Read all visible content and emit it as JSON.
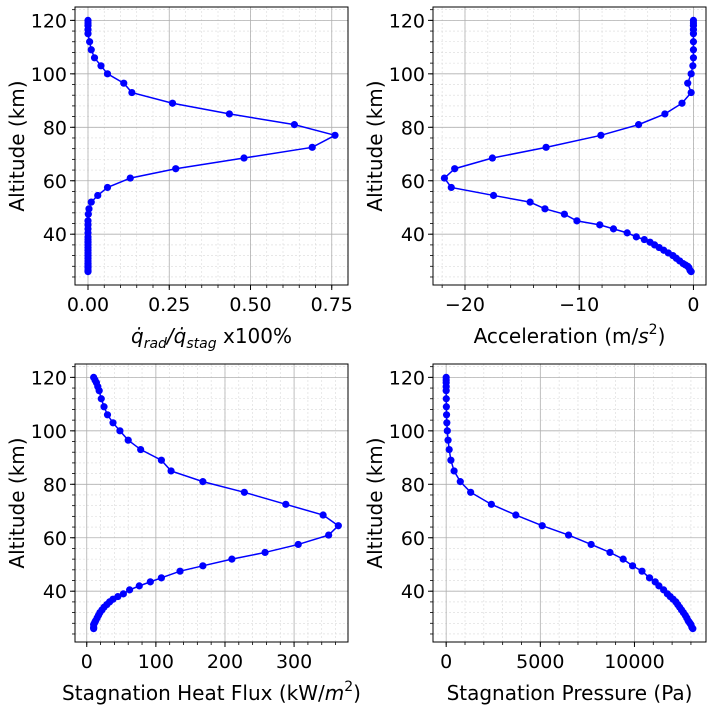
{
  "colors": {
    "series": "#0000ff",
    "grid_major": "#b0b0b0",
    "grid_minor": "#d9d9d9",
    "axes": "#000000"
  },
  "chart_data": [
    {
      "id": "rad",
      "type": "line",
      "marker": "circle",
      "ylabel": "Altitude (km)",
      "xlabel_parts": [
        {
          "t": "q̇",
          "style": "italic"
        },
        {
          "t": "rad",
          "style": "sub-italic"
        },
        {
          "t": "/",
          "style": "italic"
        },
        {
          "t": "q̇",
          "style": "italic"
        },
        {
          "t": "stag",
          "style": "sub-italic"
        },
        {
          "t": " x100%",
          "style": "normal"
        }
      ],
      "xlim": [
        -0.04,
        0.8
      ],
      "ylim": [
        21,
        125
      ],
      "xticks": [
        0,
        0.25,
        0.5,
        0.75
      ],
      "xtick_labels": [
        "0.00",
        "0.25",
        "0.50",
        "0.75"
      ],
      "yticks": [
        40,
        60,
        80,
        100,
        120
      ],
      "ytick_labels": [
        "40",
        "60",
        "80",
        "100",
        "120"
      ],
      "grid": true,
      "x": [
        0,
        0,
        0,
        0,
        0,
        0.005,
        0.01,
        0.02,
        0.04,
        0.06,
        0.11,
        0.135,
        0.26,
        0.435,
        0.635,
        0.76,
        0.69,
        0.48,
        0.27,
        0.13,
        0.06,
        0.03,
        0.01,
        0.003,
        0.001,
        0,
        0,
        0,
        0,
        0,
        0,
        0,
        0,
        0,
        0,
        0,
        0,
        0,
        0,
        0,
        0,
        0,
        0,
        0,
        0
      ],
      "y": [
        120,
        119,
        118,
        116.5,
        115,
        112,
        109,
        106,
        103,
        100,
        96.5,
        93,
        89,
        85,
        81,
        77,
        72.5,
        68.5,
        64.5,
        61,
        57.5,
        54.5,
        52,
        49.5,
        47.5,
        45,
        43.5,
        42,
        40.5,
        39,
        38,
        37,
        36,
        35,
        34,
        33,
        32,
        31,
        30,
        29,
        28.5,
        28,
        27.5,
        26.5,
        26
      ]
    },
    {
      "id": "acc",
      "type": "line",
      "marker": "circle",
      "ylabel": "Altitude (km)",
      "xlabel_parts": [
        {
          "t": "Acceleration (m/",
          "style": "normal"
        },
        {
          "t": "s",
          "style": "italic"
        },
        {
          "t": "2",
          "style": "sup"
        },
        {
          "t": ")",
          "style": "normal"
        }
      ],
      "xlim": [
        -22.8,
        1.1
      ],
      "ylim": [
        21,
        125
      ],
      "xticks": [
        -20,
        -10,
        0
      ],
      "xtick_labels": [
        "−20",
        "−10",
        "0"
      ],
      "yticks": [
        40,
        60,
        80,
        100,
        120
      ],
      "ytick_labels": [
        "40",
        "60",
        "80",
        "100",
        "120"
      ],
      "grid": true,
      "x": [
        0,
        0,
        0,
        0,
        0,
        0,
        0,
        0,
        -0.05,
        -0.2,
        -0.5,
        -0.2,
        -1.0,
        -2.5,
        -4.8,
        -8.1,
        -12.9,
        -17.6,
        -20.9,
        -21.8,
        -21.2,
        -17.5,
        -14.3,
        -13.0,
        -11.3,
        -10.2,
        -8.2,
        -7.0,
        -5.8,
        -5.0,
        -4.3,
        -3.8,
        -3.4,
        -3.0,
        -2.6,
        -2.2,
        -1.8,
        -1.5,
        -1.2,
        -0.9,
        -0.7,
        -0.5,
        -0.4,
        -0.3,
        -0.2
      ],
      "y": [
        120,
        119,
        118,
        116.5,
        115,
        112,
        109,
        106,
        103,
        100,
        96.5,
        93,
        89,
        85,
        81,
        77,
        72.5,
        68.5,
        64.5,
        61,
        57.5,
        54.5,
        52,
        49.5,
        47.5,
        45,
        43.5,
        42,
        40.5,
        39,
        38,
        37,
        36,
        35,
        34,
        33,
        32,
        31,
        30,
        29,
        28.5,
        28,
        27.5,
        26.5,
        26
      ]
    },
    {
      "id": "heat",
      "type": "line",
      "marker": "circle",
      "ylabel": "Altitude (km)",
      "xlabel_parts": [
        {
          "t": "Stagnation Heat Flux (kW/",
          "style": "normal"
        },
        {
          "t": "m",
          "style": "italic"
        },
        {
          "t": "2",
          "style": "sup"
        },
        {
          "t": ")",
          "style": "normal"
        }
      ],
      "xlim": [
        -17,
        378
      ],
      "ylim": [
        21,
        125
      ],
      "xticks": [
        0,
        100,
        200,
        300
      ],
      "xtick_labels": [
        "0",
        "100",
        "200",
        "300"
      ],
      "yticks": [
        40,
        60,
        80,
        100,
        120
      ],
      "ytick_labels": [
        "40",
        "60",
        "80",
        "100",
        "120"
      ],
      "grid": true,
      "x": [
        10,
        12,
        14,
        16,
        18,
        21,
        25,
        30,
        38,
        48,
        60,
        78,
        108,
        122,
        168,
        228,
        288,
        342,
        364,
        350,
        306,
        258,
        210,
        168,
        135,
        108,
        92,
        76,
        62,
        53,
        45,
        38,
        33,
        29,
        25,
        22,
        19,
        17,
        15,
        13,
        12,
        11,
        10,
        10,
        10
      ],
      "y": [
        120,
        119,
        118,
        116.5,
        115,
        112,
        109,
        106,
        103,
        100,
        96.5,
        93,
        89,
        85,
        81,
        77,
        72.5,
        68.5,
        64.5,
        61,
        57.5,
        54.5,
        52,
        49.5,
        47.5,
        45,
        43.5,
        42,
        40.5,
        39,
        38,
        37,
        36,
        35,
        34,
        33,
        32,
        31,
        30,
        29,
        28.5,
        28,
        27.5,
        26.5,
        26
      ]
    },
    {
      "id": "press",
      "type": "line",
      "marker": "circle",
      "ylabel": "Altitude (km)",
      "xlabel_parts": [
        {
          "t": "Stagnation Pressure (Pa)",
          "style": "normal"
        }
      ],
      "xlim": [
        -700,
        13800
      ],
      "ylim": [
        21,
        125
      ],
      "xticks": [
        0,
        5000,
        10000
      ],
      "xtick_labels": [
        "0",
        "5000",
        "10000"
      ],
      "yticks": [
        40,
        60,
        80,
        100,
        120
      ],
      "ytick_labels": [
        "40",
        "60",
        "80",
        "100",
        "120"
      ],
      "grid": true,
      "x": [
        0,
        0,
        0,
        0,
        0,
        5,
        10,
        20,
        35,
        60,
        100,
        160,
        250,
        420,
        750,
        1300,
        2400,
        3700,
        5100,
        6500,
        7700,
        8700,
        9400,
        9900,
        10400,
        10800,
        11100,
        11300,
        11550,
        11750,
        11900,
        12050,
        12200,
        12300,
        12400,
        12500,
        12600,
        12700,
        12780,
        12850,
        12900,
        12950,
        13000,
        13050,
        13100
      ],
      "y": [
        120,
        119,
        118,
        116.5,
        115,
        112,
        109,
        106,
        103,
        100,
        96.5,
        93,
        89,
        85,
        81,
        77,
        72.5,
        68.5,
        64.5,
        61,
        57.5,
        54.5,
        52,
        49.5,
        47.5,
        45,
        43.5,
        42,
        40.5,
        39,
        38,
        37,
        36,
        35,
        34,
        33,
        32,
        31,
        30,
        29,
        28.5,
        28,
        27.5,
        26.5,
        26
      ]
    }
  ]
}
